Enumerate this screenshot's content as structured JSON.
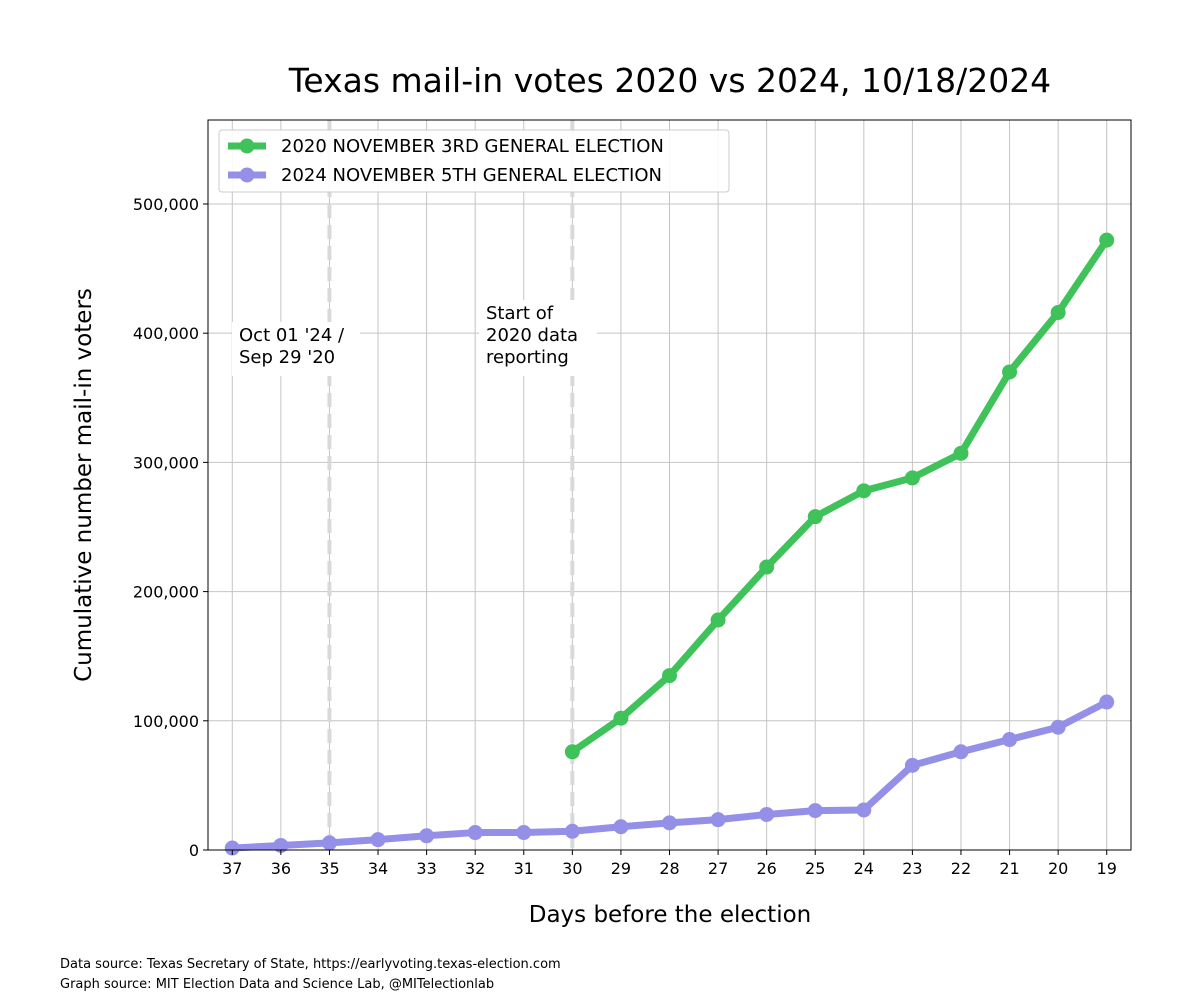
{
  "chart_data": {
    "type": "line",
    "title": "Texas mail-in votes 2020 vs 2024, 10/18/2024",
    "xlabel": "Days before the election",
    "ylabel": "Cumulative number mail-in voters",
    "x": [
      37,
      36,
      35,
      34,
      33,
      32,
      31,
      30,
      29,
      28,
      27,
      26,
      25,
      24,
      23,
      22,
      21,
      20,
      19
    ],
    "x_tick_labels": [
      "37",
      "36",
      "35",
      "34",
      "33",
      "32",
      "31",
      "30",
      "29",
      "28",
      "27",
      "26",
      "25",
      "24",
      "23",
      "22",
      "21",
      "20",
      "19"
    ],
    "x_reversed": true,
    "xlim": [
      37.5,
      18.5
    ],
    "ylim": [
      0,
      565000
    ],
    "y_ticks": [
      0,
      100000,
      200000,
      300000,
      400000,
      500000
    ],
    "y_tick_labels": [
      "0",
      "100,000",
      "200,000",
      "300,000",
      "400,000",
      "500,000"
    ],
    "grid": true,
    "legend_position": "top-left",
    "series": [
      {
        "name": "2020 NOVEMBER 3RD GENERAL ELECTION",
        "color": "#3ec259",
        "x": [
          30,
          29,
          28,
          27,
          26,
          25,
          24,
          23,
          22,
          21,
          20,
          19
        ],
        "values": [
          76000,
          102000,
          135000,
          178000,
          219000,
          258000,
          278000,
          288000,
          307000,
          370000,
          416000,
          472000
        ]
      },
      {
        "name": "2024 NOVEMBER 5TH GENERAL ELECTION",
        "color": "#9490e8",
        "x": [
          37,
          36,
          35,
          34,
          33,
          32,
          31,
          30,
          29,
          28,
          27,
          26,
          25,
          24,
          23,
          22,
          21,
          20,
          19
        ],
        "values": [
          1500,
          3500,
          5500,
          8000,
          11000,
          13500,
          13500,
          14500,
          18000,
          21000,
          23500,
          27500,
          30500,
          31000,
          65500,
          76000,
          85500,
          95000,
          114500
        ]
      }
    ],
    "vlines": [
      {
        "x": 35,
        "label_lines": [
          "Oct 01 '24 /",
          "Sep 29 '20"
        ]
      },
      {
        "x": 30,
        "label_lines": [
          "Start of",
          "2020 data",
          "reporting"
        ]
      }
    ]
  },
  "footer": {
    "data_source": "Data source: Texas Secretary of State, https://earlyvoting.texas-election.com",
    "graph_source": "Graph source: MIT Election Data and Science Lab, @MITelectionlab"
  }
}
